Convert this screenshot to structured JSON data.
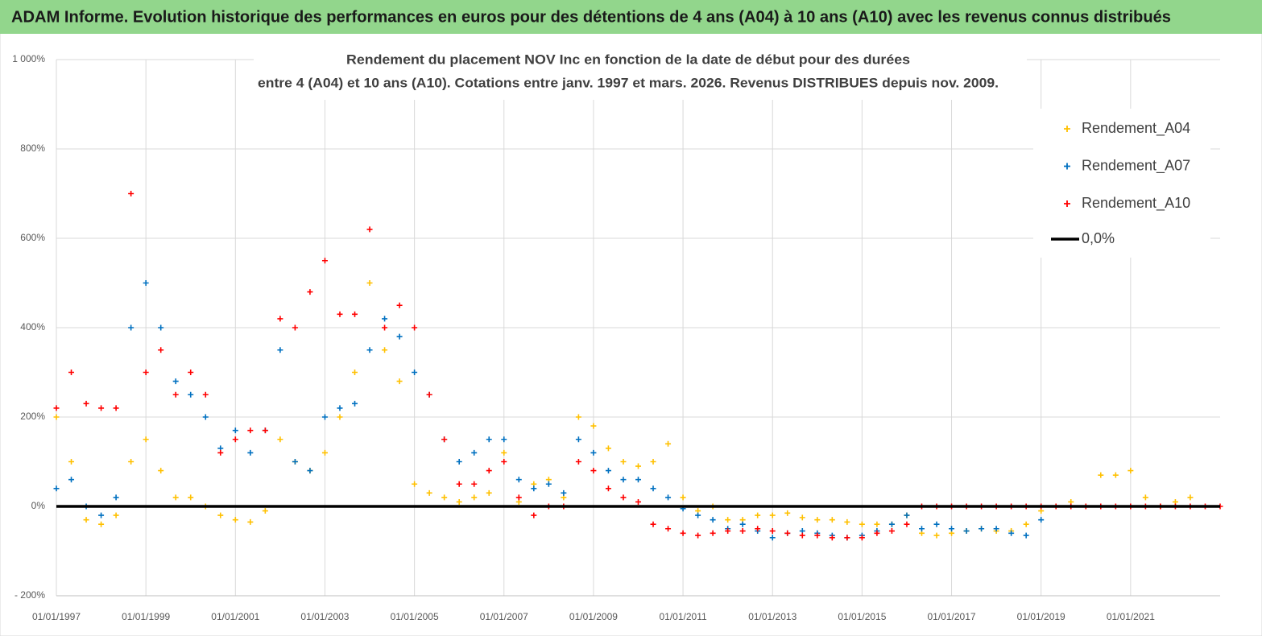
{
  "header": {
    "title": "ADAM Informe. Evolution historique des performances en euros pour des détentions de 4 ans (A04) à 10 ans (A10) avec les revenus connus distribués"
  },
  "chart_data": {
    "type": "scatter",
    "title": [
      "Rendement du placement NOV Inc en fonction de la date de début pour des durées",
      "entre 4 (A04) et 10 ans (A10).  Cotations entre janv. 1997 et mars. 2026. Revenus DISTRIBUES depuis nov. 2009."
    ],
    "x": [
      "01/01/1997",
      "01/05/1997",
      "01/09/1997",
      "01/01/1998",
      "01/05/1998",
      "01/09/1998",
      "01/01/1999",
      "01/05/1999",
      "01/09/1999",
      "01/01/2000",
      "01/05/2000",
      "01/09/2000",
      "01/01/2001",
      "01/05/2001",
      "01/09/2001",
      "01/01/2002",
      "01/05/2002",
      "01/09/2002",
      "01/01/2003",
      "01/05/2003",
      "01/09/2003",
      "01/01/2004",
      "01/05/2004",
      "01/09/2004",
      "01/01/2005",
      "01/05/2005",
      "01/09/2005",
      "01/01/2006",
      "01/05/2006",
      "01/09/2006",
      "01/01/2007",
      "01/05/2007",
      "01/09/2007",
      "01/01/2008",
      "01/05/2008",
      "01/09/2008",
      "01/01/2009",
      "01/05/2009",
      "01/09/2009",
      "01/01/2010",
      "01/05/2010",
      "01/09/2010",
      "01/01/2011",
      "01/05/2011",
      "01/09/2011",
      "01/01/2012",
      "01/05/2012",
      "01/09/2012",
      "01/01/2013",
      "01/05/2013",
      "01/09/2013",
      "01/01/2014",
      "01/05/2014",
      "01/09/2014",
      "01/01/2015",
      "01/05/2015",
      "01/09/2015",
      "01/01/2016",
      "01/05/2016",
      "01/09/2016",
      "01/01/2017",
      "01/05/2017",
      "01/09/2017",
      "01/01/2018",
      "01/05/2018",
      "01/09/2018",
      "01/01/2019",
      "01/05/2019",
      "01/09/2019",
      "01/01/2020",
      "01/05/2020",
      "01/09/2020",
      "01/01/2021",
      "01/05/2021",
      "01/09/2021",
      "01/01/2022",
      "01/05/2022",
      "01/09/2022",
      "01/01/2023"
    ],
    "series": [
      {
        "name": "Rendement_A04",
        "color": "#ffc000",
        "values": [
          200,
          100,
          -30,
          -40,
          -20,
          100,
          150,
          80,
          20,
          20,
          0,
          -20,
          -30,
          -35,
          -10,
          150,
          100,
          80,
          120,
          200,
          300,
          500,
          350,
          280,
          50,
          30,
          20,
          10,
          20,
          30,
          120,
          10,
          50,
          60,
          20,
          200,
          180,
          130,
          100,
          90,
          100,
          140,
          20,
          -10,
          0,
          -30,
          -30,
          -20,
          -20,
          -15,
          -25,
          -30,
          -30,
          -35,
          -40,
          -40,
          -40,
          -20,
          -60,
          -65,
          -60,
          -55,
          -50,
          -55,
          -55,
          -40,
          -10,
          0,
          10,
          0,
          70,
          70,
          80,
          20,
          0,
          10,
          20,
          null,
          null
        ]
      },
      {
        "name": "Rendement_A07",
        "color": "#0070c0",
        "values": [
          40,
          60,
          0,
          -20,
          20,
          400,
          500,
          400,
          280,
          250,
          200,
          130,
          170,
          120,
          170,
          350,
          100,
          80,
          200,
          220,
          230,
          350,
          420,
          380,
          300,
          250,
          150,
          100,
          120,
          150,
          150,
          60,
          40,
          50,
          30,
          150,
          120,
          80,
          60,
          60,
          40,
          20,
          -5,
          -20,
          -30,
          -50,
          -40,
          -55,
          -70,
          -60,
          -55,
          -60,
          -65,
          -70,
          -65,
          -55,
          -40,
          -20,
          -50,
          -40,
          -50,
          -55,
          -50,
          -50,
          -60,
          -65,
          -30,
          null,
          null,
          null,
          null,
          null,
          null,
          null,
          null,
          null,
          null,
          null,
          null
        ]
      },
      {
        "name": "Rendement_A10",
        "color": "#ff0000",
        "values": [
          220,
          300,
          230,
          220,
          220,
          700,
          300,
          350,
          250,
          300,
          250,
          120,
          150,
          170,
          170,
          420,
          400,
          480,
          550,
          430,
          430,
          620,
          400,
          450,
          400,
          250,
          150,
          50,
          50,
          80,
          100,
          20,
          -20,
          0,
          0,
          100,
          80,
          40,
          20,
          10,
          -40,
          -50,
          -60,
          -65,
          -60,
          -55,
          -55,
          -50,
          -55,
          -60,
          -65,
          -65,
          -70,
          -70,
          -70,
          -60,
          -55,
          -40,
          0,
          0,
          0,
          0,
          0,
          0,
          0,
          0,
          0,
          0,
          0,
          0,
          0,
          0,
          0,
          0,
          0,
          0,
          0,
          0,
          0
        ]
      }
    ],
    "reference_line": {
      "name": "0,0%",
      "value": 0,
      "color": "#000000"
    },
    "xlim": [
      "01/01/1997",
      "01/01/2023"
    ],
    "xticks": [
      "01/01/1997",
      "01/01/1999",
      "01/01/2001",
      "01/01/2003",
      "01/01/2005",
      "01/01/2007",
      "01/01/2009",
      "01/01/2011",
      "01/01/2013",
      "01/01/2015",
      "01/01/2017",
      "01/01/2019",
      "01/01/2021"
    ],
    "ylim": [
      -200,
      1000
    ],
    "yticks": [
      {
        "value": -200,
        "label": "- 200%"
      },
      {
        "value": 0,
        "label": "0%"
      },
      {
        "value": 200,
        "label": "200%"
      },
      {
        "value": 400,
        "label": "400%"
      },
      {
        "value": 600,
        "label": "600%"
      },
      {
        "value": 800,
        "label": "800%"
      },
      {
        "value": 1000,
        "label": "1 000%"
      }
    ],
    "grid": true,
    "legend": "right"
  }
}
